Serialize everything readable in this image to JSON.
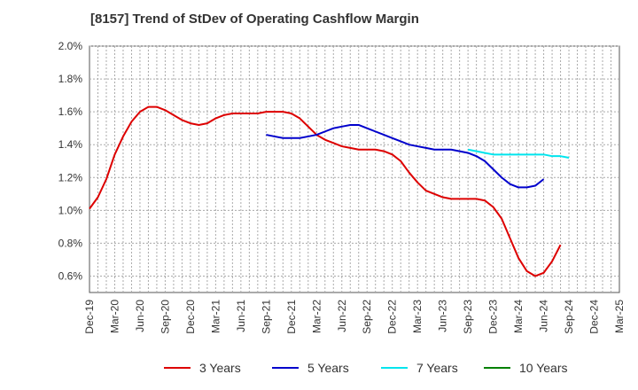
{
  "chart_data": {
    "type": "line",
    "title": "[8157]  Trend of StDev of Operating Cashflow Margin",
    "xlabel": "",
    "ylabel": "",
    "ylim": [
      0.5,
      2.0
    ],
    "y_ticks": [
      "0.6%",
      "0.8%",
      "1.0%",
      "1.2%",
      "1.4%",
      "1.6%",
      "1.8%",
      "2.0%"
    ],
    "y_tick_values": [
      0.6,
      0.8,
      1.0,
      1.2,
      1.4,
      1.6,
      1.8,
      2.0
    ],
    "x_ticks": [
      "Dec-19",
      "Mar-20",
      "Jun-20",
      "Sep-20",
      "Dec-20",
      "Mar-21",
      "Jun-21",
      "Sep-21",
      "Dec-21",
      "Mar-22",
      "Jun-22",
      "Sep-22",
      "Dec-22",
      "Mar-23",
      "Jun-23",
      "Sep-23",
      "Dec-23",
      "Mar-24",
      "Jun-24",
      "Sep-24",
      "Dec-24",
      "Mar-25"
    ],
    "x_unit": "month",
    "grid": true,
    "legend_position": "bottom",
    "series": [
      {
        "name": "3 Years",
        "color": "#dd0000",
        "start_index": 0,
        "values": [
          1.01,
          1.08,
          1.19,
          1.34,
          1.45,
          1.54,
          1.6,
          1.63,
          1.63,
          1.61,
          1.58,
          1.55,
          1.53,
          1.52,
          1.53,
          1.56,
          1.58,
          1.59,
          1.59,
          1.59,
          1.59,
          1.6,
          1.6,
          1.6,
          1.59,
          1.56,
          1.51,
          1.46,
          1.43,
          1.41,
          1.39,
          1.38,
          1.37,
          1.37,
          1.37,
          1.36,
          1.34,
          1.3,
          1.23,
          1.17,
          1.12,
          1.1,
          1.08,
          1.07,
          1.07,
          1.07,
          1.07,
          1.06,
          1.02,
          0.95,
          0.83,
          0.71,
          0.63,
          0.6,
          0.62,
          0.69,
          0.79
        ]
      },
      {
        "name": "5 Years",
        "color": "#0000cc",
        "start_index": 21,
        "values": [
          1.46,
          1.45,
          1.44,
          1.44,
          1.44,
          1.45,
          1.46,
          1.48,
          1.5,
          1.51,
          1.52,
          1.52,
          1.5,
          1.48,
          1.46,
          1.44,
          1.42,
          1.4,
          1.39,
          1.38,
          1.37,
          1.37,
          1.37,
          1.36,
          1.35,
          1.33,
          1.3,
          1.25,
          1.2,
          1.16,
          1.14,
          1.14,
          1.15,
          1.19
        ]
      },
      {
        "name": "7 Years",
        "color": "#00e5ee",
        "start_index": 45,
        "values": [
          1.37,
          1.36,
          1.35,
          1.34,
          1.34,
          1.34,
          1.34,
          1.34,
          1.34,
          1.34,
          1.33,
          1.33,
          1.32
        ]
      },
      {
        "name": "10 Years",
        "color": "#008000",
        "start_index": 0,
        "values": []
      }
    ]
  }
}
